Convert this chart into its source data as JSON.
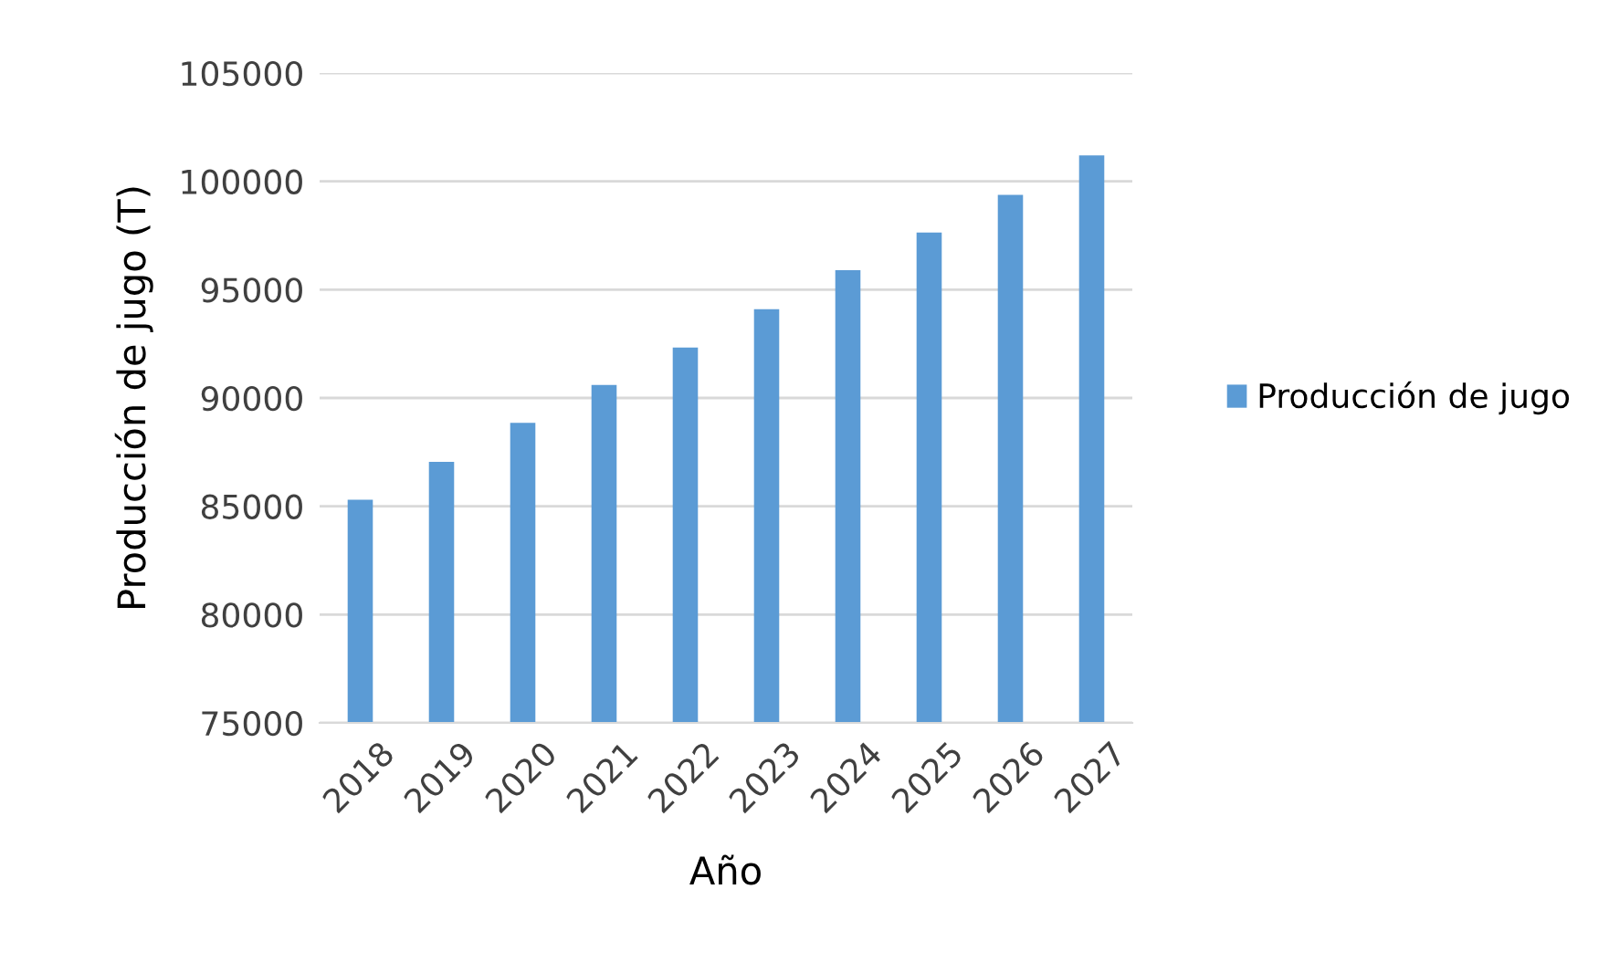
{
  "chart_data": {
    "type": "bar",
    "xlabel": "Año",
    "ylabel": "Producción de jugo (T)",
    "categories": [
      "2018",
      "2019",
      "2020",
      "2021",
      "2022",
      "2023",
      "2024",
      "2025",
      "2026",
      "2027"
    ],
    "series": [
      {
        "name": "Producción de jugo",
        "color": "#5b9bd5",
        "values": [
          85300,
          87050,
          88850,
          90600,
          92330,
          94100,
          95900,
          97640,
          99380,
          101200
        ]
      }
    ],
    "ylim": [
      75000,
      105000
    ],
    "yticks": [
      75000,
      80000,
      85000,
      90000,
      95000,
      100000,
      105000
    ],
    "grid": "y",
    "legend": "right"
  }
}
